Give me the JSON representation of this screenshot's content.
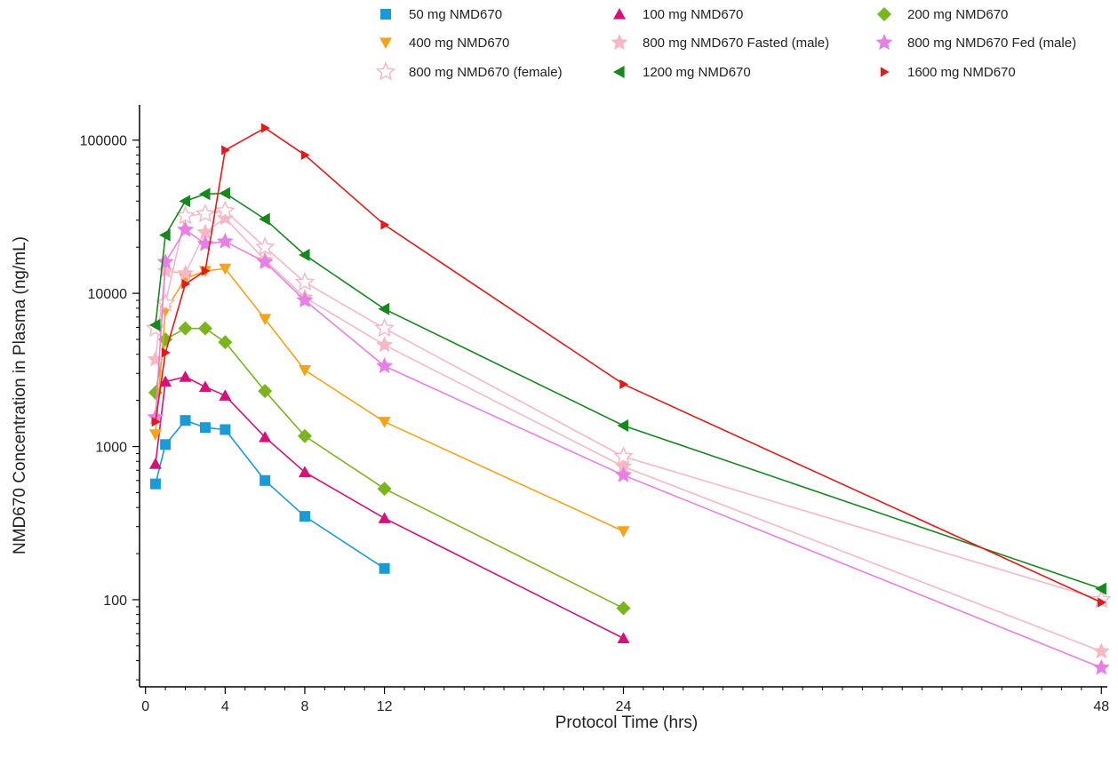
{
  "chart_data": {
    "type": "line",
    "title": "",
    "xlabel": "Protocol Time (hrs)",
    "ylabel": "NMD670 Concentration in Plasma (ng/mL)",
    "xlim": [
      -0.3,
      48.3
    ],
    "ylim": [
      27,
      170000
    ],
    "yscale": "log",
    "xticks": [
      0,
      4,
      8,
      12,
      24,
      48
    ],
    "yticks": [
      100,
      1000,
      10000,
      100000
    ],
    "grid": false,
    "legend_position": "top",
    "series": [
      {
        "name": "50 mg NMD670",
        "color": "#1a9ad6",
        "marker": "square",
        "x": [
          0.5,
          1,
          2,
          3,
          4,
          6,
          8,
          12
        ],
        "y": [
          570,
          1030,
          1480,
          1330,
          1290,
          600,
          350,
          160
        ]
      },
      {
        "name": "100 mg NMD670",
        "color": "#d4127a",
        "marker": "triangle-up",
        "x": [
          0.5,
          1,
          2,
          3,
          4,
          6,
          8,
          12,
          24
        ],
        "y": [
          770,
          2650,
          2850,
          2450,
          2150,
          1150,
          680,
          340,
          56
        ]
      },
      {
        "name": "200 mg NMD670",
        "color": "#7ab51d",
        "marker": "diamond",
        "x": [
          0.5,
          1,
          2,
          3,
          4,
          6,
          8,
          12,
          24
        ],
        "y": [
          2250,
          5000,
          5900,
          5900,
          4800,
          2300,
          1170,
          530,
          88
        ]
      },
      {
        "name": "400 mg NMD670",
        "color": "#f5a31a",
        "marker": "triangle-down",
        "x": [
          0.5,
          1,
          2,
          3,
          4,
          6,
          8,
          12,
          24
        ],
        "y": [
          1200,
          7700,
          12500,
          14000,
          14500,
          6800,
          3150,
          1450,
          280
        ]
      },
      {
        "name": "800 mg NMD670 Fasted (male)",
        "color": "#f7b8c6",
        "marker": "star",
        "x": [
          0.5,
          1,
          2,
          3,
          4,
          6,
          8,
          12,
          24,
          48
        ],
        "y": [
          3700,
          14000,
          13500,
          25000,
          31000,
          16500,
          9400,
          4600,
          740,
          46
        ]
      },
      {
        "name": "800 mg NMD670 Fed (male)",
        "color": "#e680e6",
        "marker": "star",
        "x": [
          0.5,
          1,
          2,
          3,
          4,
          6,
          8,
          12,
          24,
          48
        ],
        "y": [
          1550,
          16000,
          26000,
          21000,
          21800,
          16000,
          9000,
          3350,
          650,
          36
        ]
      },
      {
        "name": "800 mg NMD670 (female)",
        "color": "#f7b8c6",
        "marker": "star-open",
        "x": [
          0.5,
          1,
          2,
          3,
          4,
          6,
          8,
          12,
          24,
          48
        ],
        "y": [
          5900,
          8600,
          32000,
          33000,
          34500,
          20000,
          11800,
          5900,
          860,
          100
        ]
      },
      {
        "name": "1200 mg NMD670",
        "color": "#16881e",
        "marker": "triangle-left",
        "x": [
          0.5,
          1,
          2,
          3,
          4,
          6,
          8,
          12,
          24,
          48
        ],
        "y": [
          6200,
          24000,
          40000,
          44500,
          45000,
          30500,
          17800,
          7900,
          1370,
          118
        ]
      },
      {
        "name": "1600 mg NMD670",
        "color": "#e31a1a",
        "marker": "triangle-right",
        "x": [
          0.5,
          1,
          2,
          3,
          4,
          6,
          8,
          12,
          24,
          48
        ],
        "y": [
          1450,
          4100,
          11500,
          14000,
          86000,
          120000,
          80000,
          28000,
          2550,
          96
        ]
      }
    ]
  }
}
